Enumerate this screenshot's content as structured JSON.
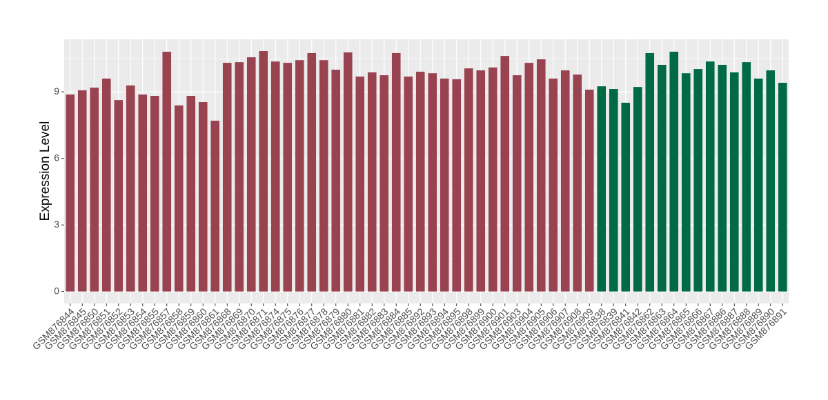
{
  "chart_data": {
    "type": "bar",
    "y_label": "Expression Level",
    "categories": [
      "GSM876844",
      "GSM876845",
      "GSM876850",
      "GSM876851",
      "GSM876852",
      "GSM876853",
      "GSM876854",
      "GSM876855",
      "GSM876857",
      "GSM876858",
      "GSM876859",
      "GSM876860",
      "GSM876861",
      "GSM876868",
      "GSM876869",
      "GSM876870",
      "GSM876871",
      "GSM876874",
      "GSM876875",
      "GSM876876",
      "GSM876877",
      "GSM876878",
      "GSM876879",
      "GSM876880",
      "GSM876881",
      "GSM876882",
      "GSM876883",
      "GSM876884",
      "GSM876885",
      "GSM876892",
      "GSM876893",
      "GSM876894",
      "GSM876895",
      "GSM876898",
      "GSM876899",
      "GSM876900",
      "GSM876901",
      "GSM876903",
      "GSM876904",
      "GSM876905",
      "GSM876906",
      "GSM876907",
      "GSM876908",
      "GSM876909",
      "GSM876838",
      "GSM876839",
      "GSM876841",
      "GSM876842",
      "GSM876862",
      "GSM876863",
      "GSM876864",
      "GSM876865",
      "GSM876866",
      "GSM876867",
      "GSM876886",
      "GSM876887",
      "GSM876888",
      "GSM876889",
      "GSM876890",
      "GSM876891"
    ],
    "values": [
      8.88,
      9.07,
      9.19,
      9.6,
      8.63,
      9.29,
      8.88,
      8.82,
      10.81,
      8.39,
      8.82,
      8.54,
      7.7,
      10.31,
      10.34,
      10.56,
      10.84,
      10.37,
      10.31,
      10.43,
      10.75,
      10.43,
      10.0,
      10.78,
      9.69,
      9.88,
      9.75,
      10.75,
      9.69,
      9.91,
      9.84,
      9.6,
      9.57,
      10.06,
      9.97,
      10.1,
      10.62,
      9.75,
      10.31,
      10.47,
      9.6,
      9.97,
      9.78,
      9.1,
      9.25,
      9.13,
      8.51,
      9.22,
      10.75,
      10.22,
      10.81,
      9.84,
      10.03,
      10.37,
      10.22,
      9.88,
      10.34,
      9.6,
      9.97,
      9.41
    ],
    "colors": [
      "#9a4350",
      "#9a4350",
      "#9a4350",
      "#9a4350",
      "#9a4350",
      "#9a4350",
      "#9a4350",
      "#9a4350",
      "#9a4350",
      "#9a4350",
      "#9a4350",
      "#9a4350",
      "#9a4350",
      "#9a4350",
      "#9a4350",
      "#9a4350",
      "#9a4350",
      "#9a4350",
      "#9a4350",
      "#9a4350",
      "#9a4350",
      "#9a4350",
      "#9a4350",
      "#9a4350",
      "#9a4350",
      "#9a4350",
      "#9a4350",
      "#9a4350",
      "#9a4350",
      "#9a4350",
      "#9a4350",
      "#9a4350",
      "#9a4350",
      "#9a4350",
      "#9a4350",
      "#9a4350",
      "#9a4350",
      "#9a4350",
      "#9a4350",
      "#9a4350",
      "#9a4350",
      "#9a4350",
      "#9a4350",
      "#9a4350",
      "#006a45",
      "#006a45",
      "#006a45",
      "#006a45",
      "#006a45",
      "#006a45",
      "#006a45",
      "#006a45",
      "#006a45",
      "#006a45",
      "#006a45",
      "#006a45",
      "#006a45",
      "#006a45",
      "#006a45",
      "#006a45"
    ],
    "ylim": [
      -0.54,
      11.37
    ],
    "yticks": [
      0,
      3,
      6,
      9
    ],
    "minor_yticks": [
      1.5,
      4.5,
      7.5,
      10.5
    ],
    "grid": true
  }
}
